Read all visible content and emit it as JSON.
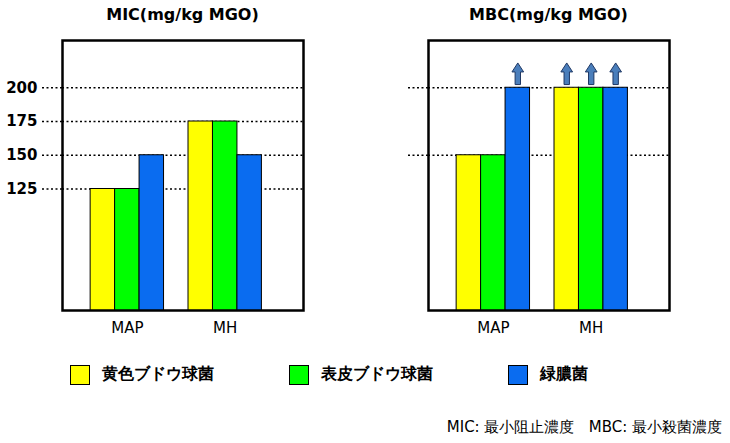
{
  "chart_data": [
    {
      "type": "bar",
      "title": "MIC(mg/kg MGO)",
      "categories": [
        "MAP",
        "MH"
      ],
      "series": [
        {
          "name": "黄色ブドウ球菌",
          "color": "#ffff00",
          "values": [
            125,
            175
          ]
        },
        {
          "name": "表皮ブドウ球菌",
          "color": "#00ff00",
          "values": [
            125,
            175
          ]
        },
        {
          "name": "緑膿菌",
          "color": "#0a6cf0",
          "values": [
            150,
            150
          ]
        }
      ],
      "ylim": [
        35,
        235
      ],
      "yticks": [
        125,
        150,
        175,
        200
      ],
      "grid": true,
      "legend": "bottom"
    },
    {
      "type": "bar",
      "title": "MBC(mg/kg MGO)",
      "categories": [
        "MAP",
        "MH"
      ],
      "series": [
        {
          "name": "黄色ブドウ球菌",
          "color": "#ffff00",
          "values": [
            150,
            200
          ],
          "exceeds": [
            false,
            true
          ]
        },
        {
          "name": "表皮ブドウ球菌",
          "color": "#00ff00",
          "values": [
            150,
            200
          ],
          "exceeds": [
            false,
            true
          ]
        },
        {
          "name": "緑膿菌",
          "color": "#0a6cf0",
          "values": [
            200,
            200
          ],
          "exceeds": [
            true,
            true
          ]
        }
      ],
      "ylim": [
        35,
        235
      ],
      "yticks": [
        150,
        200
      ],
      "grid": true,
      "tick_labels": "x",
      "legend": "bottom"
    }
  ],
  "caption": "MIC: 最小阻止濃度   MBC: 最小殺菌濃度"
}
